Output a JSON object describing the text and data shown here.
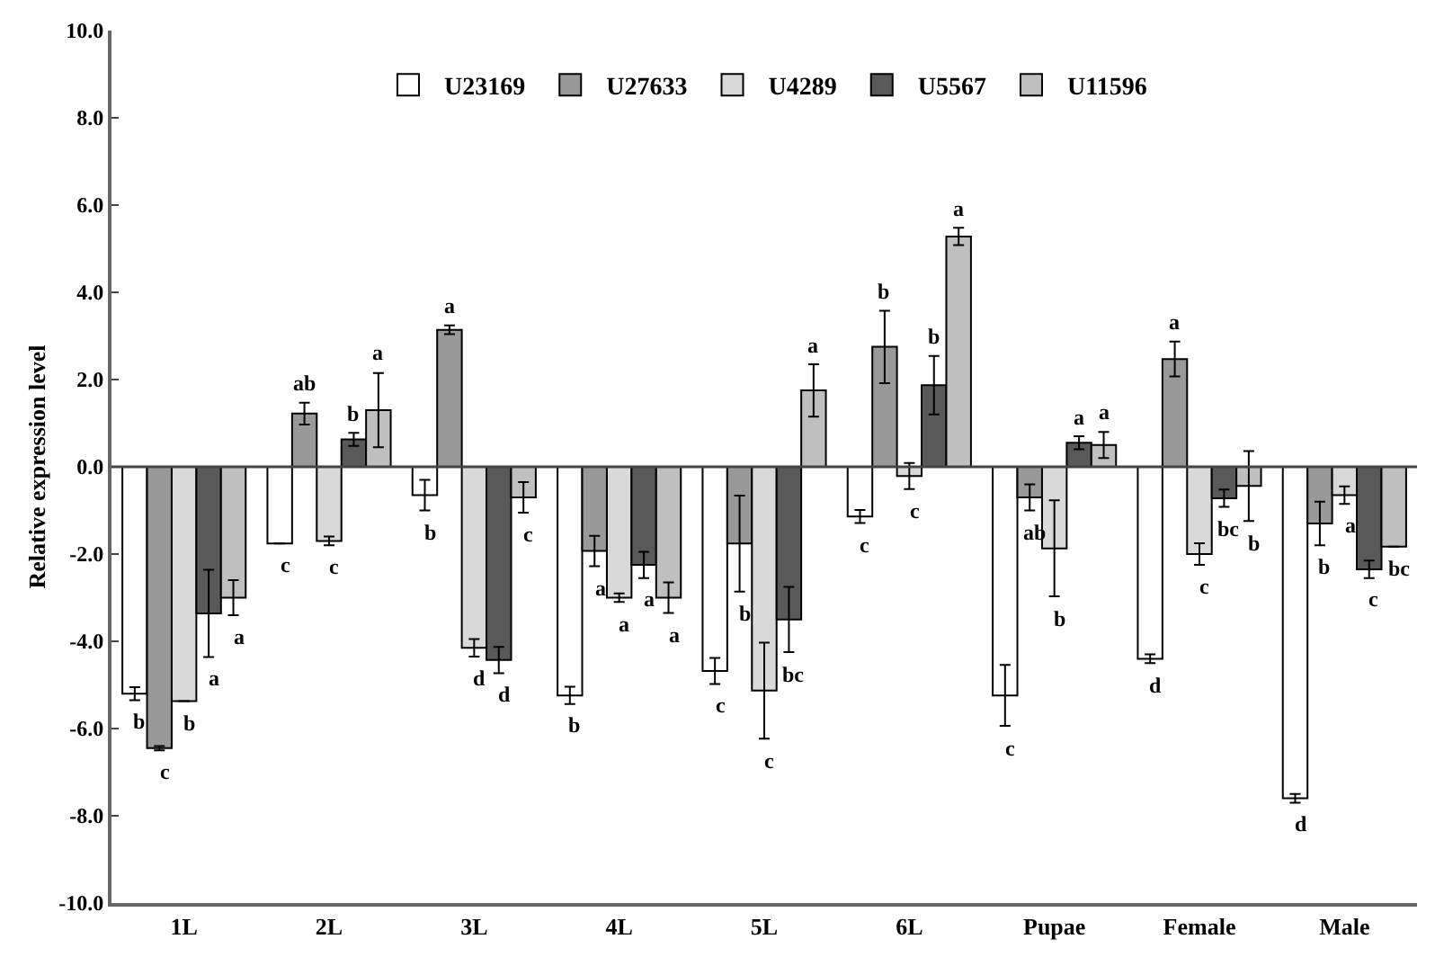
{
  "chart_data": {
    "type": "bar",
    "ylabel": "Relative expression level",
    "categories": [
      "1L",
      "2L",
      "3L",
      "4L",
      "5L",
      "6L",
      "Pupae",
      "Female",
      "Male"
    ],
    "series": [
      {
        "name": "U23169",
        "color": "#ffffff",
        "values": [
          -5.2,
          -1.76,
          -0.65,
          -5.24,
          -4.68,
          -1.14,
          -5.24,
          -4.4,
          -7.6
        ],
        "errors": [
          0.15,
          0,
          0.35,
          0.2,
          0.3,
          0.15,
          0.7,
          0.1,
          0.1
        ],
        "value_labels": [
          "b",
          "c",
          "b",
          "b",
          "c",
          "c",
          "c",
          "d",
          "d"
        ]
      },
      {
        "name": "U27633",
        "color": "#999999",
        "values": [
          -6.45,
          1.22,
          3.14,
          -1.93,
          -1.76,
          2.75,
          -0.7,
          2.47,
          -1.3
        ],
        "errors": [
          0.05,
          0.25,
          0.1,
          0.35,
          1.1,
          0.83,
          0.3,
          0.4,
          0.5
        ],
        "value_labels": [
          "c",
          "ab",
          "a",
          "a",
          "b",
          "b",
          "ab",
          "a",
          "b"
        ]
      },
      {
        "name": "U4289",
        "color": "#d9d9d9",
        "values": [
          -5.37,
          -1.7,
          -4.15,
          -3.0,
          -5.13,
          -0.21,
          -1.87,
          -2.0,
          -0.65
        ],
        "errors": [
          0,
          0.1,
          0.2,
          0.1,
          1.1,
          0.3,
          1.1,
          0.25,
          0.2
        ],
        "value_labels": [
          "b",
          "c",
          "d",
          "a",
          "c",
          "c",
          "b",
          "c",
          "a"
        ]
      },
      {
        "name": "U5567",
        "color": "#595959",
        "values": [
          -3.36,
          0.63,
          -4.43,
          -2.25,
          -3.5,
          1.87,
          0.55,
          -0.72,
          -2.35
        ],
        "errors": [
          1.0,
          0.15,
          0.3,
          0.3,
          0.75,
          0.67,
          0.15,
          0.2,
          0.2
        ],
        "value_labels": [
          "a",
          "b",
          "d",
          "a",
          "bc",
          "b",
          "a",
          "bc",
          "c"
        ]
      },
      {
        "name": "U11596",
        "color": "#bfbfbf",
        "values": [
          -3.0,
          1.3,
          -0.7,
          -3.0,
          1.75,
          5.28,
          0.5,
          -0.44,
          -1.83
        ],
        "errors": [
          0.4,
          0.85,
          0.35,
          0.35,
          0.6,
          0.2,
          0.3,
          0.8,
          0
        ],
        "value_labels": [
          "a",
          "a",
          "c",
          "a",
          "a",
          "a",
          "a",
          "b",
          "bc"
        ]
      }
    ],
    "ylim": [
      -10,
      10
    ],
    "yticks": [
      {
        "value": 10,
        "label": "10.0"
      },
      {
        "value": 8,
        "label": "8.0"
      },
      {
        "value": 6,
        "label": "6.0"
      },
      {
        "value": 4,
        "label": "4.0"
      },
      {
        "value": 2,
        "label": "2.0"
      },
      {
        "value": 0,
        "label": "0.0"
      },
      {
        "value": -2,
        "label": "-2.0"
      },
      {
        "value": -4,
        "label": "-4.0"
      },
      {
        "value": -6,
        "label": "-6.0"
      },
      {
        "value": -8,
        "label": "-8.0"
      },
      {
        "value": -10,
        "label": "-10.0"
      }
    ],
    "ref_lines": [
      {
        "axis": "y",
        "value": 0,
        "color": "#444444"
      }
    ],
    "legend": "top",
    "grid": false
  }
}
